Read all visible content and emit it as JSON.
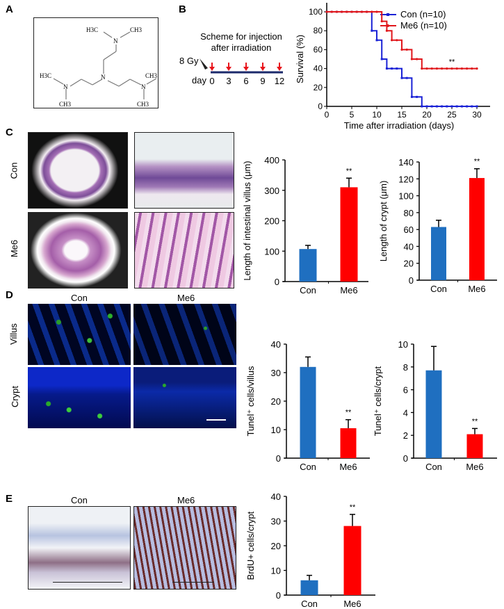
{
  "panels": {
    "a": "A",
    "b": "B",
    "c": "C",
    "d": "D",
    "e": "E"
  },
  "structure": {
    "atoms": [
      "H3C",
      "CH3",
      "N",
      "H3C",
      "N",
      "CH3",
      "N",
      "CH3",
      "CH3",
      "N"
    ]
  },
  "scheme": {
    "title_line1": "Scheme for injection",
    "title_line2": "after irradiation",
    "dose": "8 Gy",
    "day_label": "day",
    "days": [
      "0",
      "3",
      "6",
      "9",
      "12"
    ],
    "arrow_color": "#e8141b",
    "line_color": "#1b2a6b"
  },
  "groups": {
    "con": "Con",
    "me6": "Me6"
  },
  "panel_d": {
    "row_villus": "Villus",
    "row_crypt": "Crypt"
  },
  "colors": {
    "con_bar": "#1f6fc0",
    "me6_bar": "#ff0000",
    "con_line": "#1a22d6",
    "me6_line": "#e0161b"
  },
  "chart_data": [
    {
      "type": "line",
      "step": true,
      "xlabel": "Time after irradiation (days)",
      "ylabel": "Survival (%)",
      "xlim": [
        0,
        30
      ],
      "ylim": [
        0,
        100
      ],
      "xticks": [
        0,
        5,
        10,
        15,
        20,
        25,
        30
      ],
      "yticks": [
        0,
        20,
        40,
        60,
        80,
        100
      ],
      "legend": "top-right",
      "annotation": "**",
      "series": [
        {
          "name": "Con (n=10)",
          "color": "#1a22d6",
          "points": [
            [
              0,
              100
            ],
            [
              9,
              80
            ],
            [
              10,
              70
            ],
            [
              11,
              50
            ],
            [
              12,
              40
            ],
            [
              15,
              30
            ],
            [
              17,
              10
            ],
            [
              19,
              0
            ],
            [
              30,
              0
            ]
          ]
        },
        {
          "name": "Me6 (n=10)",
          "color": "#e0161b",
          "points": [
            [
              0,
              100
            ],
            [
              11,
              90
            ],
            [
              12,
              80
            ],
            [
              13,
              70
            ],
            [
              15,
              60
            ],
            [
              17,
              50
            ],
            [
              19,
              40
            ],
            [
              30,
              40
            ]
          ]
        }
      ]
    },
    {
      "type": "bar",
      "ylabel": "Length of intestinal villus (μm)",
      "ylim": [
        0,
        400
      ],
      "yticks": [
        0,
        100,
        200,
        300,
        400
      ],
      "categories": [
        "Con",
        "Me6"
      ],
      "values": [
        107,
        310
      ],
      "errors": [
        12,
        30
      ],
      "significance": [
        "",
        "**"
      ],
      "colors": [
        "#1f6fc0",
        "#ff0000"
      ]
    },
    {
      "type": "bar",
      "ylabel": "Length of crypt (μm)",
      "ylim": [
        0,
        140
      ],
      "yticks": [
        0,
        20,
        40,
        60,
        80,
        100,
        120,
        140
      ],
      "categories": [
        "Con",
        "Me6"
      ],
      "values": [
        63,
        121
      ],
      "errors": [
        8,
        11
      ],
      "significance": [
        "",
        "**"
      ],
      "colors": [
        "#1f6fc0",
        "#ff0000"
      ]
    },
    {
      "type": "bar",
      "ylabel": "Tunel⁺ cells/villus",
      "ylim": [
        0,
        40
      ],
      "yticks": [
        0,
        10,
        20,
        30,
        40
      ],
      "categories": [
        "Con",
        "Me6"
      ],
      "values": [
        32,
        10.5
      ],
      "errors": [
        3.5,
        3
      ],
      "significance": [
        "",
        "**"
      ],
      "colors": [
        "#1f6fc0",
        "#ff0000"
      ]
    },
    {
      "type": "bar",
      "ylabel": "Tunel⁺ cells/crypt",
      "ylim": [
        0,
        10
      ],
      "yticks": [
        0,
        2,
        4,
        6,
        8,
        10
      ],
      "categories": [
        "Con",
        "Me6"
      ],
      "values": [
        7.7,
        2.1
      ],
      "errors": [
        2.1,
        0.5
      ],
      "significance": [
        "",
        "**"
      ],
      "colors": [
        "#1f6fc0",
        "#ff0000"
      ]
    },
    {
      "type": "bar",
      "ylabel": "BrdU+ cells/crypt",
      "ylim": [
        0,
        40
      ],
      "yticks": [
        0,
        10,
        20,
        30,
        40
      ],
      "categories": [
        "Con",
        "Me6"
      ],
      "values": [
        6,
        28
      ],
      "errors": [
        2,
        4.7
      ],
      "significance": [
        "",
        "**"
      ],
      "colors": [
        "#1f6fc0",
        "#ff0000"
      ]
    }
  ]
}
